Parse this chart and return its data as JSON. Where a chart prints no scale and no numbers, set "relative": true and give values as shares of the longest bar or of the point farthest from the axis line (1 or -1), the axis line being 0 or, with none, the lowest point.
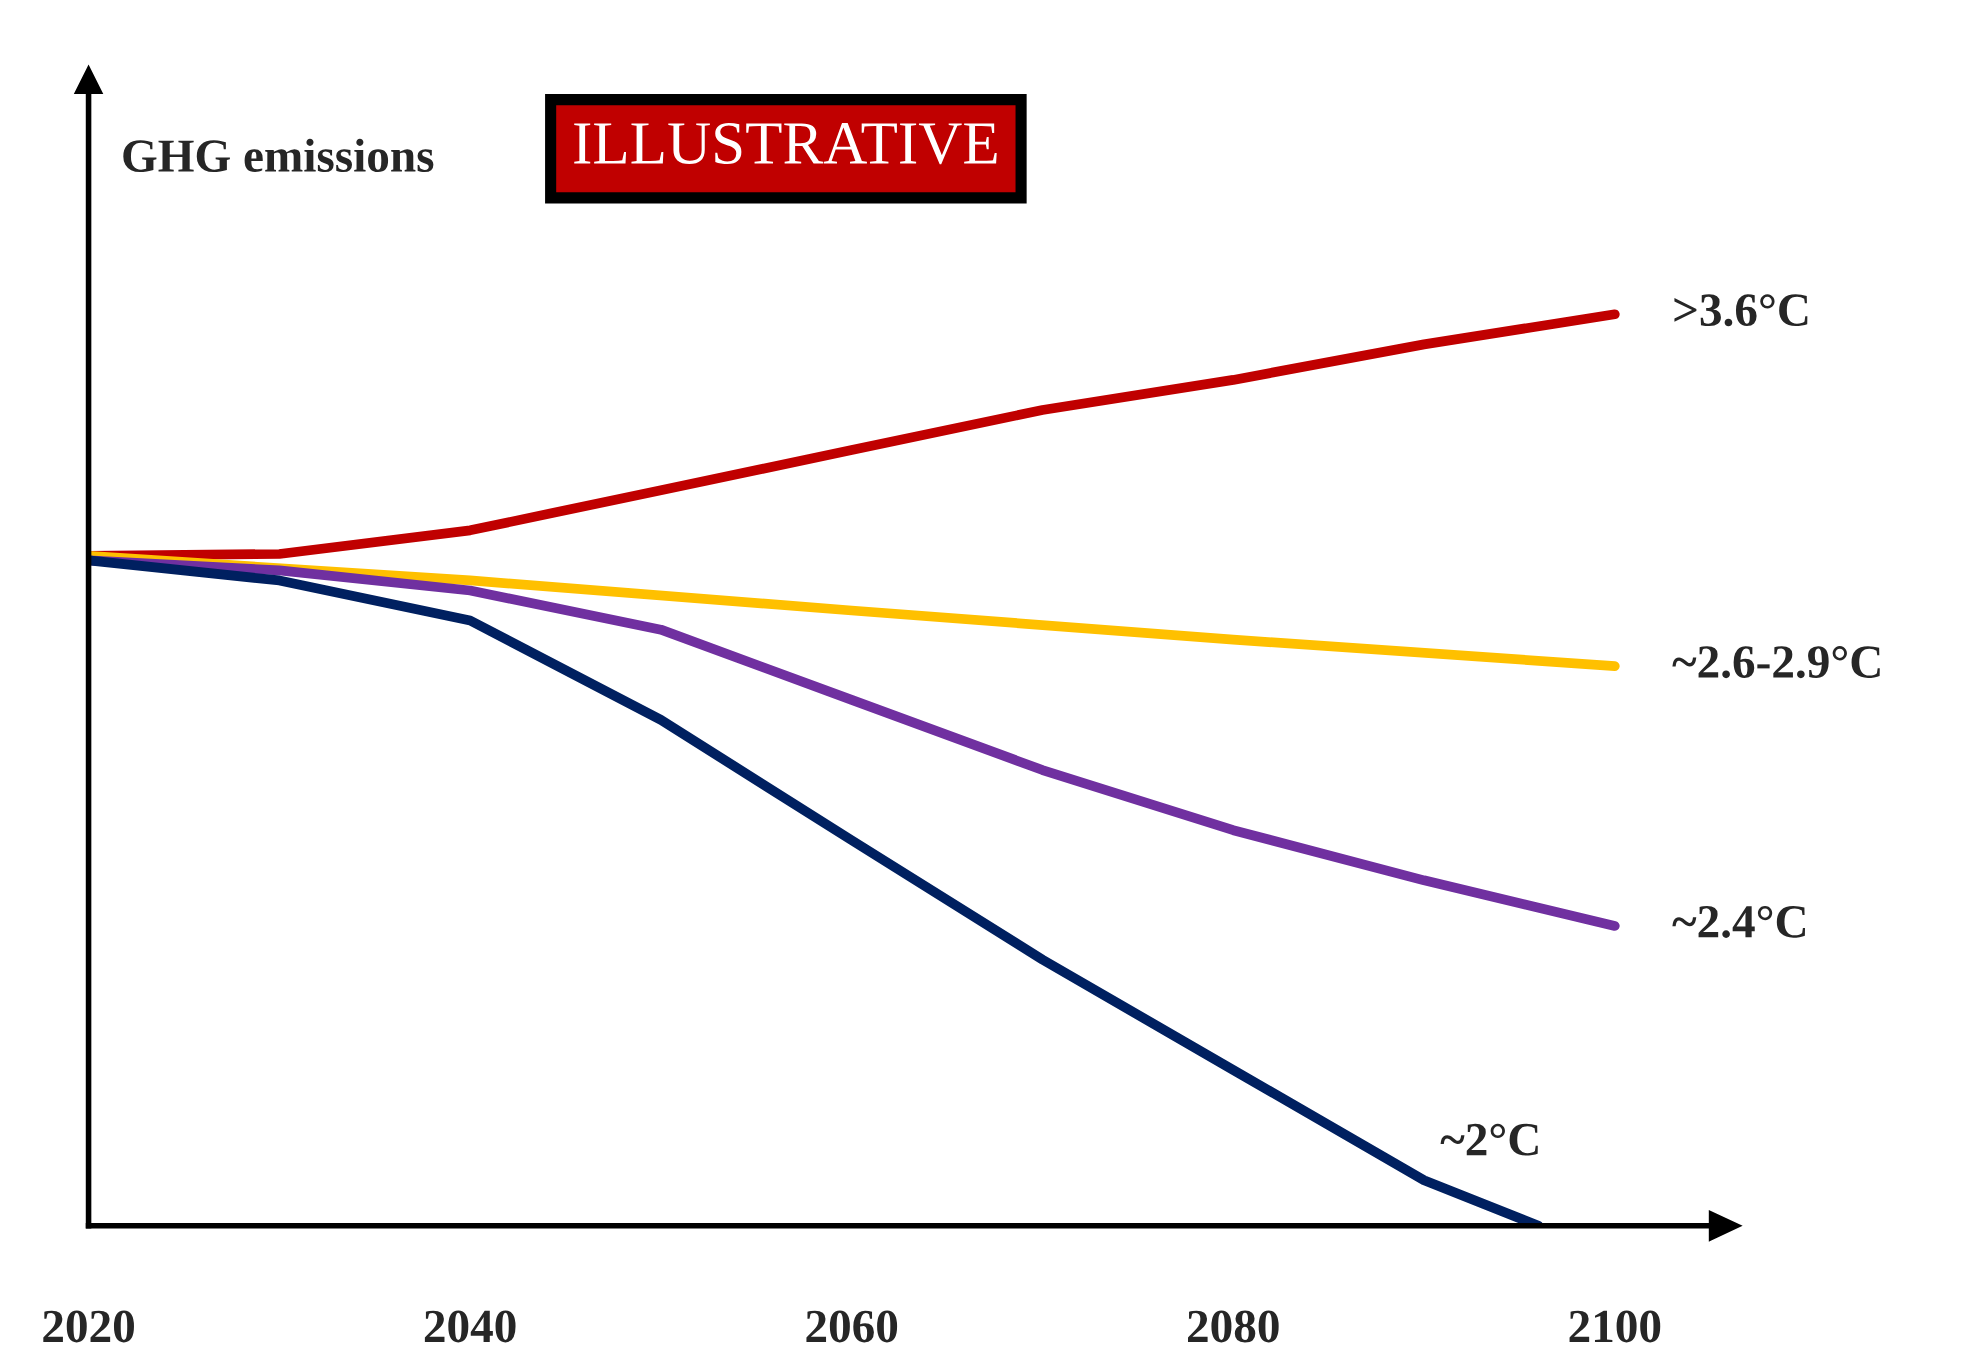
{
  "chart_data": {
    "type": "line",
    "relative": true,
    "ylabel": "GHG emissions",
    "annotations": [
      "ILLUSTRATIVE"
    ],
    "x": [
      2020,
      2030,
      2040,
      2050,
      2060,
      2070,
      2080,
      2090,
      2100
    ],
    "xlim": [
      2020,
      2105
    ],
    "xticks": [
      2020,
      2040,
      2060,
      2080,
      2100
    ],
    "tick_labels": "x",
    "grid": false,
    "legend": false,
    "marker": "none",
    "line_style": "solid",
    "series": [
      {
        "name": ">3.6°C",
        "color": "#c00000",
        "values": [
          0.735,
          0.737,
          0.763,
          0.807,
          0.851,
          0.895,
          0.928,
          0.967,
          1
        ]
      },
      {
        "name": "~2.6-2.9°C",
        "color": "#ffc000",
        "x": [
          2020,
          2040,
          2060,
          2080,
          2100
        ],
        "values": [
          0.735,
          0.708,
          0.675,
          0.643,
          0.614
        ]
      },
      {
        "name": "~2.4°C",
        "color": "#7030a0",
        "values": [
          0.73,
          0.719,
          0.697,
          0.654,
          0.577,
          0.5,
          0.434,
          0.379,
          0.329
        ]
      },
      {
        "name": "~2°C",
        "color": "#002060",
        "x": [
          2020,
          2030,
          2040,
          2050,
          2060,
          2070,
          2080,
          2090,
          2096
        ],
        "values": [
          0.73,
          0.708,
          0.664,
          0.555,
          0.423,
          0.292,
          0.171,
          0.05,
          0
        ]
      }
    ]
  }
}
